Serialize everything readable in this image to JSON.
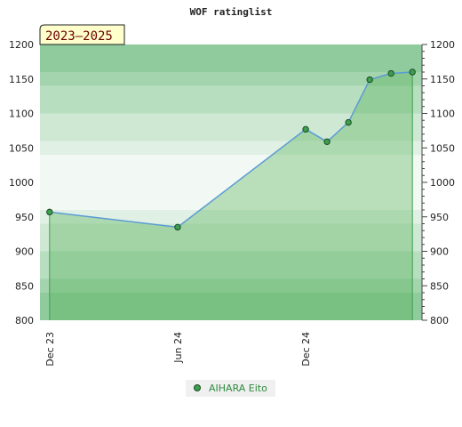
{
  "chart_data": {
    "type": "area",
    "title": "WOF ratinglist",
    "badge": "2023–2025",
    "xlabel": "",
    "ylabel": "",
    "ylim": [
      800,
      1200
    ],
    "yticks": [
      800,
      850,
      900,
      950,
      1000,
      1050,
      1100,
      1150,
      1200
    ],
    "x_ticks": [
      {
        "label": "Dec 23",
        "index": 0
      },
      {
        "label": "Jun 24",
        "index": 6
      },
      {
        "label": "Dec 24",
        "index": 12
      }
    ],
    "x_range": [
      -0.45,
      17.45
    ],
    "series": [
      {
        "name": "AIHARA Eito",
        "points": [
          {
            "x": 0,
            "y": 957
          },
          {
            "x": 6,
            "y": 935
          },
          {
            "x": 12,
            "y": 1077
          },
          {
            "x": 13,
            "y": 1059
          },
          {
            "x": 14,
            "y": 1087
          },
          {
            "x": 15,
            "y": 1149
          },
          {
            "x": 16,
            "y": 1158
          },
          {
            "x": 17,
            "y": 1160
          }
        ]
      }
    ],
    "grid": true,
    "legend_position": "bottom",
    "colors": {
      "line": "#5b9bd5",
      "marker": "#3e9e4f",
      "fill": "#4caf50",
      "legend_text": "#2e8b3e",
      "badge_bg": "#ffffcc",
      "badge_text": "#6b0000"
    }
  }
}
